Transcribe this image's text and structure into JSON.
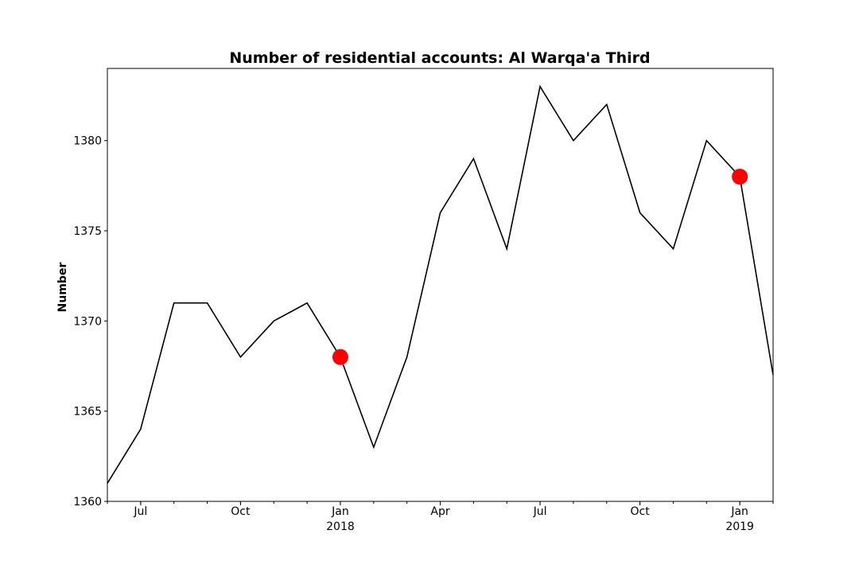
{
  "chart_data": {
    "type": "line",
    "title": "Number of residential accounts: Al Warqa'a Third",
    "xlabel": "",
    "ylabel": "Number",
    "ylim": [
      1360,
      1384
    ],
    "yticks": [
      1360,
      1365,
      1370,
      1375,
      1380
    ],
    "x": [
      "2017-06",
      "2017-07",
      "2017-08",
      "2017-09",
      "2017-10",
      "2017-11",
      "2017-12",
      "2018-01",
      "2018-02",
      "2018-03",
      "2018-04",
      "2018-05",
      "2018-06",
      "2018-07",
      "2018-08",
      "2018-09",
      "2018-10",
      "2018-11",
      "2018-12",
      "2019-01",
      "2019-02"
    ],
    "xticks": [
      {
        "x": "2017-07",
        "label": "Jul"
      },
      {
        "x": "2017-10",
        "label": "Oct"
      },
      {
        "x": "2018-01",
        "label": "Jan",
        "year": "2018"
      },
      {
        "x": "2018-04",
        "label": "Apr"
      },
      {
        "x": "2018-07",
        "label": "Jul"
      },
      {
        "x": "2018-10",
        "label": "Oct"
      },
      {
        "x": "2019-01",
        "label": "Jan",
        "year": "2019"
      }
    ],
    "series": [
      {
        "values": [
          1361,
          1364,
          1371,
          1371,
          1368,
          1370,
          1371,
          1368,
          1363,
          1368,
          1376,
          1379,
          1374,
          1383,
          1380,
          1382,
          1376,
          1374,
          1380,
          1378,
          1367
        ],
        "color": "#000000"
      }
    ],
    "highlights": [
      {
        "x": "2018-01",
        "y": 1368,
        "color": "#ff0000"
      },
      {
        "x": "2019-01",
        "y": 1378,
        "color": "#ff0000"
      }
    ],
    "grid": false,
    "legend": "none"
  }
}
